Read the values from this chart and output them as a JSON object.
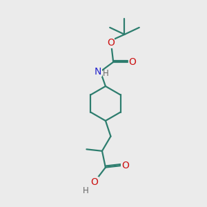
{
  "bg_color": "#ebebeb",
  "bond_color": "#2d7d6e",
  "N_color": "#2222cc",
  "O_color": "#cc1111",
  "H_color": "#666666",
  "bond_width": 1.6,
  "font_size_atom": 10,
  "fig_size": [
    3.0,
    3.0
  ],
  "dpi": 100,
  "xlim": [
    0,
    10
  ],
  "ylim": [
    0,
    10
  ]
}
